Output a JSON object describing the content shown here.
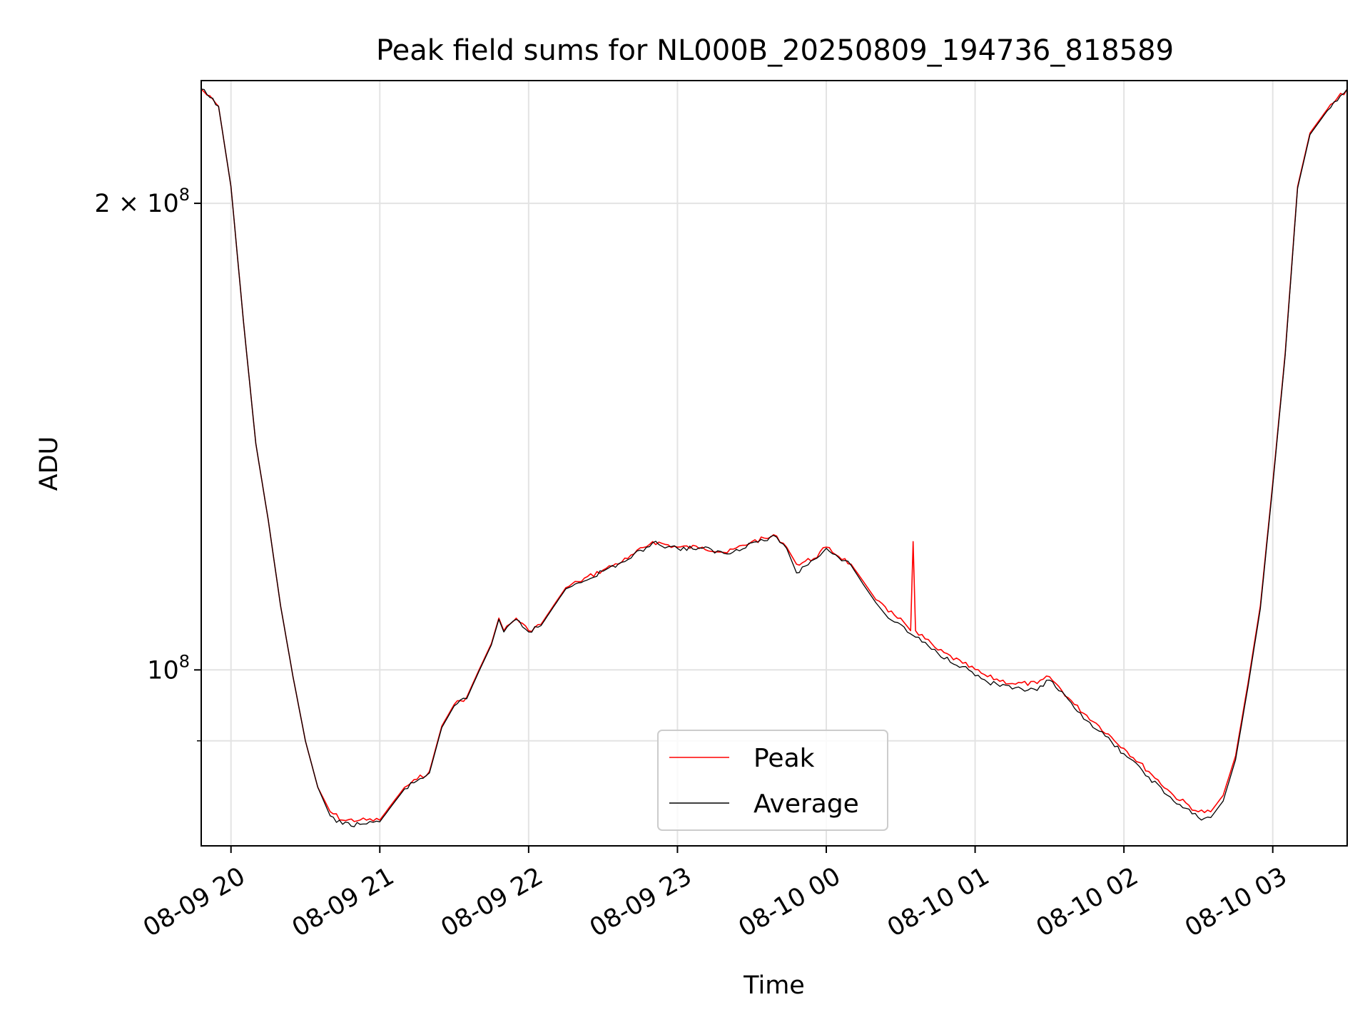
{
  "chart_data": {
    "type": "line",
    "title": "Peak field sums for NL000B_20250809_194736_818589",
    "xlabel": "Time",
    "ylabel": "ADU",
    "yscale": "log",
    "ylim": [
      77000000,
      240000000
    ],
    "xlim": [
      "08-09 19:48",
      "08-10 03:30"
    ],
    "grid": true,
    "legend_position": "lower center",
    "x_ticks": [
      "08-09 20",
      "08-09 21",
      "08-09 22",
      "08-09 23",
      "08-10 00",
      "08-10 01",
      "08-10 02",
      "08-10 03"
    ],
    "y_ticks": [
      {
        "value": 200000000,
        "mantissa": "2",
        "exponent": "8"
      },
      {
        "value": 100000000,
        "mantissa": "",
        "exponent": "8"
      }
    ],
    "y_minor_ticks": [
      90000000
    ],
    "series": [
      {
        "name": "Peak",
        "color": "#ff0000",
        "points": [
          [
            "08-09 19:48",
            237000000
          ],
          [
            "08-09 19:55",
            231000000
          ],
          [
            "08-09 20:00",
            205000000
          ],
          [
            "08-09 20:05",
            168000000
          ],
          [
            "08-09 20:10",
            140000000
          ],
          [
            "08-09 20:15",
            125000000
          ],
          [
            "08-09 20:20",
            110000000
          ],
          [
            "08-09 20:25",
            99000000
          ],
          [
            "08-09 20:30",
            90000000
          ],
          [
            "08-09 20:35",
            84000000
          ],
          [
            "08-09 20:40",
            81000000
          ],
          [
            "08-09 20:45",
            80000000
          ],
          [
            "08-09 20:52",
            80000000
          ],
          [
            "08-09 21:00",
            80000000
          ],
          [
            "08-09 21:05",
            82000000
          ],
          [
            "08-09 21:10",
            84000000
          ],
          [
            "08-09 21:15",
            85000000
          ],
          [
            "08-09 21:20",
            86000000
          ],
          [
            "08-09 21:25",
            92000000
          ],
          [
            "08-09 21:30",
            95000000
          ],
          [
            "08-09 21:35",
            96000000
          ],
          [
            "08-09 21:40",
            100000000
          ],
          [
            "08-09 21:45",
            104000000
          ],
          [
            "08-09 21:48",
            108000000
          ],
          [
            "08-09 21:50",
            106000000
          ],
          [
            "08-09 21:55",
            108000000
          ],
          [
            "08-09 22:00",
            106000000
          ],
          [
            "08-09 22:05",
            107000000
          ],
          [
            "08-09 22:10",
            110000000
          ],
          [
            "08-09 22:15",
            113000000
          ],
          [
            "08-09 22:20",
            114000000
          ],
          [
            "08-09 22:30",
            116000000
          ],
          [
            "08-09 22:40",
            118000000
          ],
          [
            "08-09 22:50",
            121000000
          ],
          [
            "08-09 23:00",
            120000000
          ],
          [
            "08-09 23:10",
            120000000
          ],
          [
            "08-09 23:20",
            119000000
          ],
          [
            "08-09 23:30",
            121000000
          ],
          [
            "08-09 23:40",
            122000000
          ],
          [
            "08-09 23:44",
            120000000
          ],
          [
            "08-09 23:48",
            117000000
          ],
          [
            "08-09 23:55",
            118000000
          ],
          [
            "08-10 00:00",
            120000000
          ],
          [
            "08-10 00:10",
            117000000
          ],
          [
            "08-10 00:15",
            114000000
          ],
          [
            "08-10 00:20",
            111000000
          ],
          [
            "08-10 00:25",
            109000000
          ],
          [
            "08-10 00:30",
            108000000
          ],
          [
            "08-10 00:34",
            106000000
          ],
          [
            "08-10 00:35",
            121000000
          ],
          [
            "08-10 00:36",
            106000000
          ],
          [
            "08-10 00:45",
            103000000
          ],
          [
            "08-10 00:55",
            101000000
          ],
          [
            "08-10 01:05",
            99000000
          ],
          [
            "08-10 01:15",
            98000000
          ],
          [
            "08-10 01:25",
            98000000
          ],
          [
            "08-10 01:30",
            99000000
          ],
          [
            "08-10 01:40",
            95000000
          ],
          [
            "08-10 01:50",
            92000000
          ],
          [
            "08-10 02:00",
            89000000
          ],
          [
            "08-10 02:10",
            86000000
          ],
          [
            "08-10 02:20",
            83000000
          ],
          [
            "08-10 02:30",
            81000000
          ],
          [
            "08-10 02:35",
            81000000
          ],
          [
            "08-10 02:40",
            83000000
          ],
          [
            "08-10 02:45",
            88000000
          ],
          [
            "08-10 02:50",
            98000000
          ],
          [
            "08-10 02:55",
            110000000
          ],
          [
            "08-10 03:00",
            132000000
          ],
          [
            "08-10 03:05",
            160000000
          ],
          [
            "08-10 03:10",
            205000000
          ],
          [
            "08-10 03:15",
            222000000
          ],
          [
            "08-10 03:22",
            230000000
          ],
          [
            "08-10 03:30",
            237000000
          ]
        ]
      },
      {
        "name": "Average",
        "color": "#000000",
        "points": [
          [
            "08-09 19:48",
            237000000
          ],
          [
            "08-09 19:55",
            231000000
          ],
          [
            "08-09 20:00",
            205000000
          ],
          [
            "08-09 20:05",
            168000000
          ],
          [
            "08-09 20:10",
            140000000
          ],
          [
            "08-09 20:15",
            125000000
          ],
          [
            "08-09 20:20",
            110000000
          ],
          [
            "08-09 20:25",
            99000000
          ],
          [
            "08-09 20:30",
            90000000
          ],
          [
            "08-09 20:35",
            84000000
          ],
          [
            "08-09 20:40",
            80500000
          ],
          [
            "08-09 20:45",
            79500000
          ],
          [
            "08-09 20:52",
            79500000
          ],
          [
            "08-09 21:00",
            79800000
          ],
          [
            "08-09 21:05",
            81800000
          ],
          [
            "08-09 21:10",
            83800000
          ],
          [
            "08-09 21:15",
            84800000
          ],
          [
            "08-09 21:20",
            85800000
          ],
          [
            "08-09 21:25",
            91800000
          ],
          [
            "08-09 21:30",
            94800000
          ],
          [
            "08-09 21:35",
            95800000
          ],
          [
            "08-09 21:40",
            99800000
          ],
          [
            "08-09 21:45",
            103800000
          ],
          [
            "08-09 21:48",
            107800000
          ],
          [
            "08-09 21:50",
            105800000
          ],
          [
            "08-09 21:55",
            107800000
          ],
          [
            "08-09 22:00",
            105800000
          ],
          [
            "08-09 22:05",
            106800000
          ],
          [
            "08-09 22:10",
            109800000
          ],
          [
            "08-09 22:15",
            112800000
          ],
          [
            "08-09 22:20",
            113800000
          ],
          [
            "08-09 22:30",
            115800000
          ],
          [
            "08-09 22:40",
            117800000
          ],
          [
            "08-09 22:50",
            120800000
          ],
          [
            "08-09 23:00",
            119800000
          ],
          [
            "08-09 23:10",
            119800000
          ],
          [
            "08-09 23:20",
            118800000
          ],
          [
            "08-09 23:30",
            120800000
          ],
          [
            "08-09 23:40",
            121800000
          ],
          [
            "08-09 23:44",
            119800000
          ],
          [
            "08-09 23:48",
            115500000
          ],
          [
            "08-09 23:55",
            117800000
          ],
          [
            "08-10 00:00",
            119800000
          ],
          [
            "08-10 00:10",
            116800000
          ],
          [
            "08-10 00:15",
            113500000
          ],
          [
            "08-10 00:20",
            110500000
          ],
          [
            "08-10 00:25",
            108000000
          ],
          [
            "08-10 00:30",
            107000000
          ],
          [
            "08-10 00:34",
            105500000
          ],
          [
            "08-10 00:36",
            105000000
          ],
          [
            "08-10 00:45",
            102500000
          ],
          [
            "08-10 00:55",
            100500000
          ],
          [
            "08-10 01:05",
            98200000
          ],
          [
            "08-10 01:15",
            97200000
          ],
          [
            "08-10 01:25",
            97000000
          ],
          [
            "08-10 01:30",
            98500000
          ],
          [
            "08-10 01:40",
            94500000
          ],
          [
            "08-10 01:50",
            91300000
          ],
          [
            "08-10 02:00",
            88300000
          ],
          [
            "08-10 02:10",
            85300000
          ],
          [
            "08-10 02:20",
            82300000
          ],
          [
            "08-10 02:30",
            80300000
          ],
          [
            "08-10 02:35",
            80300000
          ],
          [
            "08-10 02:40",
            82300000
          ],
          [
            "08-10 02:45",
            87500000
          ],
          [
            "08-10 02:50",
            97500000
          ],
          [
            "08-10 02:55",
            109500000
          ],
          [
            "08-10 03:00",
            131500000
          ],
          [
            "08-10 03:05",
            159500000
          ],
          [
            "08-10 03:10",
            204500000
          ],
          [
            "08-10 03:15",
            221500000
          ],
          [
            "08-10 03:22",
            229500000
          ],
          [
            "08-10 03:30",
            237000000
          ]
        ]
      }
    ]
  }
}
